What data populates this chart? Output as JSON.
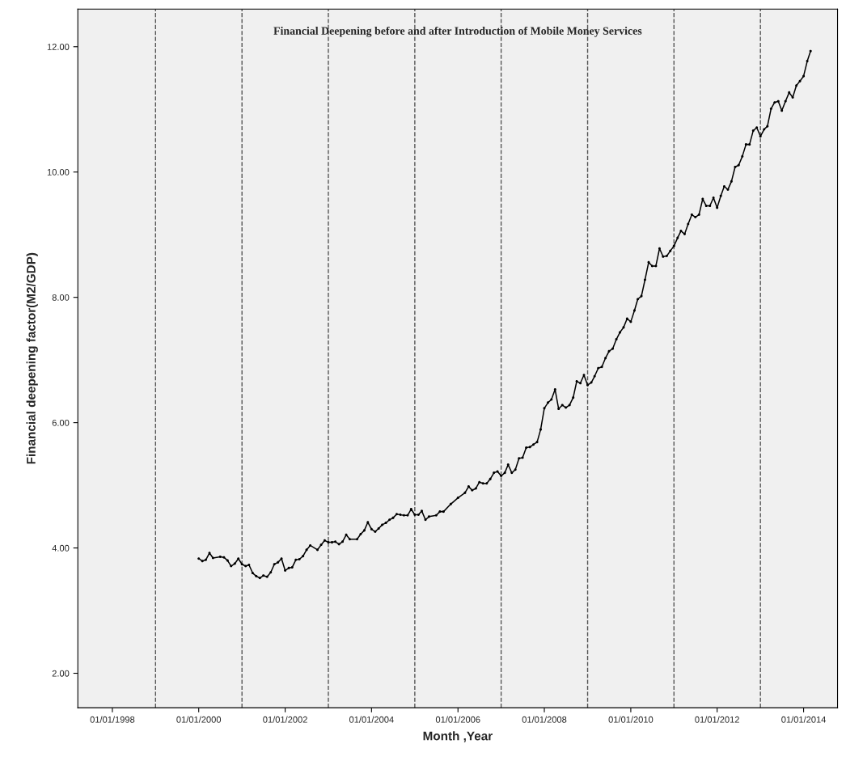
{
  "chart_data": {
    "type": "line",
    "title": "Financial Deepening before and after Introduction of Mobile Money Services",
    "xlabel": "Month ,Year",
    "ylabel": "Financial deepening factor(M2/GDP)",
    "x": [
      "2000-01",
      "2000-02",
      "2000-03",
      "2000-04",
      "2000-05",
      "2000-07",
      "2000-08",
      "2000-09",
      "2000-10",
      "2000-11",
      "2000-12",
      "2001-01",
      "2001-02",
      "2001-03",
      "2001-04",
      "2001-05",
      "2001-06",
      "2001-07",
      "2001-08",
      "2001-09",
      "2001-10",
      "2001-11",
      "2001-12",
      "2002-01",
      "2002-02",
      "2002-03",
      "2002-04",
      "2002-05",
      "2002-06",
      "2002-07",
      "2002-08",
      "2002-10",
      "2002-11",
      "2002-12",
      "2003-01",
      "2003-02",
      "2003-03",
      "2003-04",
      "2003-05",
      "2003-06",
      "2003-07",
      "2003-09",
      "2003-10",
      "2003-11",
      "2003-12",
      "2004-01",
      "2004-02",
      "2004-03",
      "2004-04",
      "2004-05",
      "2004-06",
      "2004-07",
      "2004-08",
      "2004-09",
      "2004-10",
      "2004-11",
      "2004-12",
      "2005-01",
      "2005-02",
      "2005-03",
      "2005-04",
      "2005-05",
      "2005-07",
      "2005-08",
      "2005-09",
      "2005-11",
      "2006-01",
      "2006-03",
      "2006-04",
      "2006-05",
      "2006-06",
      "2006-07",
      "2006-08",
      "2006-09",
      "2006-10",
      "2006-11",
      "2006-12",
      "2007-01",
      "2007-02",
      "2007-03",
      "2007-04",
      "2007-05",
      "2007-06",
      "2007-07",
      "2007-08",
      "2007-09",
      "2007-10",
      "2007-11",
      "2007-12",
      "2008-01",
      "2008-02",
      "2008-03",
      "2008-04",
      "2008-05",
      "2008-06",
      "2008-07",
      "2008-08",
      "2008-09",
      "2008-10",
      "2008-11",
      "2008-12",
      "2009-01",
      "2009-02",
      "2009-03",
      "2009-04",
      "2009-05",
      "2009-06",
      "2009-07",
      "2009-08",
      "2009-09",
      "2009-10",
      "2009-11",
      "2009-12",
      "2010-01",
      "2010-02",
      "2010-03",
      "2010-04",
      "2010-05",
      "2010-06",
      "2010-07",
      "2010-08",
      "2010-09",
      "2010-10",
      "2010-11",
      "2010-12",
      "2011-01",
      "2011-02",
      "2011-03",
      "2011-04",
      "2011-05",
      "2011-06",
      "2011-07",
      "2011-08",
      "2011-09",
      "2011-10",
      "2011-11",
      "2011-12",
      "2012-01",
      "2012-02",
      "2012-03",
      "2012-04",
      "2012-05",
      "2012-06",
      "2012-07",
      "2012-08",
      "2012-09",
      "2012-10",
      "2012-11",
      "2012-12",
      "2013-01",
      "2013-02",
      "2013-03",
      "2013-04",
      "2013-05",
      "2013-06",
      "2013-07",
      "2013-08",
      "2013-09",
      "2013-10",
      "2013-11",
      "2013-12",
      "2014-01",
      "2014-02",
      "2014-03"
    ],
    "series": [
      {
        "color": "#000000",
        "values": [
          3.83,
          3.79,
          3.81,
          3.92,
          3.84,
          3.86,
          3.85,
          3.8,
          3.71,
          3.75,
          3.83,
          3.74,
          3.71,
          3.73,
          3.6,
          3.55,
          3.52,
          3.56,
          3.54,
          3.61,
          3.74,
          3.77,
          3.83,
          3.64,
          3.68,
          3.69,
          3.81,
          3.82,
          3.87,
          3.97,
          4.04,
          3.97,
          4.05,
          4.12,
          4.09,
          4.09,
          4.1,
          4.06,
          4.1,
          4.21,
          4.14,
          4.14,
          4.22,
          4.28,
          4.41,
          4.3,
          4.26,
          4.31,
          4.37,
          4.4,
          4.45,
          4.48,
          4.54,
          4.53,
          4.52,
          4.52,
          4.62,
          4.53,
          4.53,
          4.59,
          4.45,
          4.5,
          4.52,
          4.58,
          4.58,
          4.7,
          4.8,
          4.88,
          4.98,
          4.92,
          4.95,
          5.05,
          5.03,
          5.03,
          5.1,
          5.2,
          5.22,
          5.15,
          5.2,
          5.33,
          5.2,
          5.25,
          5.43,
          5.44,
          5.6,
          5.61,
          5.65,
          5.69,
          5.89,
          6.23,
          6.32,
          6.37,
          6.53,
          6.22,
          6.28,
          6.24,
          6.28,
          6.4,
          6.66,
          6.63,
          6.76,
          6.6,
          6.64,
          6.74,
          6.87,
          6.89,
          7.03,
          7.14,
          7.18,
          7.33,
          7.44,
          7.52,
          7.66,
          7.61,
          7.79,
          7.97,
          8.02,
          8.28,
          8.56,
          8.5,
          8.5,
          8.78,
          8.65,
          8.66,
          8.74,
          8.82,
          8.95,
          9.06,
          9.01,
          9.17,
          9.32,
          9.28,
          9.32,
          9.57,
          9.46,
          9.46,
          9.59,
          9.43,
          9.62,
          9.77,
          9.72,
          9.85,
          10.08,
          10.11,
          10.25,
          10.44,
          10.44,
          10.66,
          10.71,
          10.57,
          10.68,
          10.73,
          11.01,
          11.11,
          11.13,
          10.98,
          11.13,
          11.27,
          11.19,
          11.38,
          11.45,
          11.53,
          11.77,
          11.93
        ]
      }
    ],
    "xlim": [
      "1997-03-15",
      "2014-10-15"
    ],
    "xticks": [
      {
        "value": "1998-01-01",
        "label": "01/01/1998"
      },
      {
        "value": "2000-01-01",
        "label": "01/01/2000"
      },
      {
        "value": "2002-01-01",
        "label": "01/01/2002"
      },
      {
        "value": "2004-01-01",
        "label": "01/01/2004"
      },
      {
        "value": "2006-01-01",
        "label": "01/01/2006"
      },
      {
        "value": "2008-01-01",
        "label": "01/01/2008"
      },
      {
        "value": "2010-01-01",
        "label": "01/01/2010"
      },
      {
        "value": "2012-01-01",
        "label": "01/01/2012"
      },
      {
        "value": "2014-01-01",
        "label": "01/01/2014"
      }
    ],
    "ylim": [
      1.45,
      12.6
    ],
    "yticks": [
      {
        "value": 2,
        "label": "2.00"
      },
      {
        "value": 4,
        "label": "4.00"
      },
      {
        "value": 6,
        "label": "6.00"
      },
      {
        "value": 8,
        "label": "8.00"
      },
      {
        "value": 10,
        "label": "10.00"
      },
      {
        "value": 12,
        "label": "12.00"
      }
    ],
    "ref_lines": [
      {
        "axis": "x",
        "value": "1999-01-01",
        "line_style": "dashed",
        "color": "#555555"
      },
      {
        "axis": "x",
        "value": "2001-01-01",
        "line_style": "dashed",
        "color": "#555555"
      },
      {
        "axis": "x",
        "value": "2003-01-01",
        "line_style": "dashed",
        "color": "#555555"
      },
      {
        "axis": "x",
        "value": "2005-01-01",
        "line_style": "dashed",
        "color": "#555555"
      },
      {
        "axis": "x",
        "value": "2007-01-01",
        "line_style": "dashed",
        "color": "#555555"
      },
      {
        "axis": "x",
        "value": "2009-01-01",
        "line_style": "dashed",
        "color": "#555555"
      },
      {
        "axis": "x",
        "value": "2011-01-01",
        "line_style": "dashed",
        "color": "#555555"
      },
      {
        "axis": "x",
        "value": "2013-01-01",
        "line_style": "dashed",
        "color": "#555555"
      }
    ],
    "marker": "circle",
    "line_style": "solid",
    "grid": false
  }
}
